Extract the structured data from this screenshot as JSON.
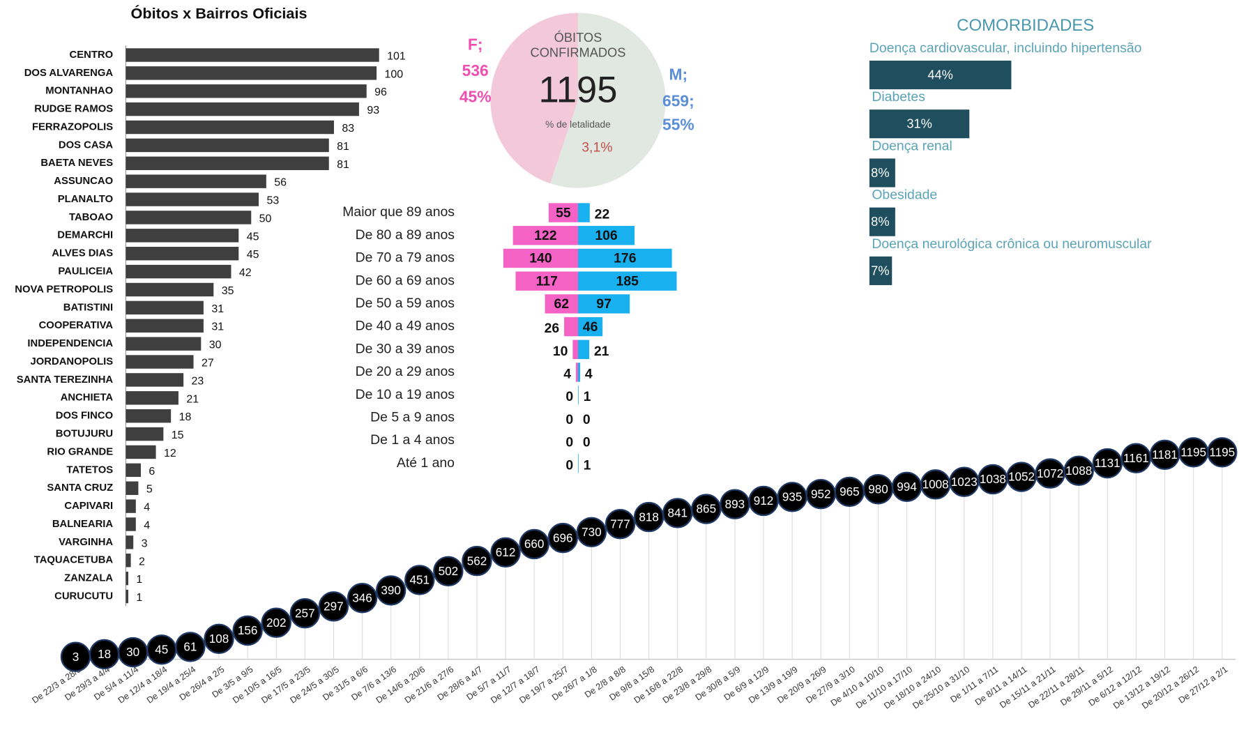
{
  "chart_data": [
    {
      "type": "bar",
      "orientation": "horizontal",
      "title": "Óbitos x Bairros Oficiais",
      "categories": [
        "CENTRO",
        "DOS ALVARENGA",
        "MONTANHAO",
        "RUDGE RAMOS",
        "FERRAZOPOLIS",
        "DOS CASA",
        "BAETA NEVES",
        "ASSUNCAO",
        "PLANALTO",
        "TABOAO",
        "DEMARCHI",
        "ALVES DIAS",
        "PAULICEIA",
        "NOVA PETROPOLIS",
        "BATISTINI",
        "COOPERATIVA",
        "INDEPENDENCIA",
        "JORDANOPOLIS",
        "SANTA TEREZINHA",
        "ANCHIETA",
        "DOS FINCO",
        "BOTUJURU",
        "RIO GRANDE",
        "TATETOS",
        "SANTA CRUZ",
        "CAPIVARI",
        "BALNEARIA",
        "VARGINHA",
        "TAQUACETUBA",
        "ZANZALA",
        "CURUCUTU"
      ],
      "values": [
        101,
        100,
        96,
        93,
        83,
        81,
        81,
        56,
        53,
        50,
        45,
        45,
        42,
        35,
        31,
        31,
        30,
        27,
        23,
        21,
        18,
        15,
        12,
        6,
        5,
        4,
        4,
        3,
        2,
        1,
        1
      ],
      "color": "#3f3f3f",
      "xlim": [
        0,
        110
      ]
    },
    {
      "type": "pie",
      "title_lines": [
        "ÓBITOS",
        "CONFIRMADOS"
      ],
      "total": 1195,
      "subtitle": "% de letalidade",
      "lethality": 3.1,
      "lethality_label": "3,1%",
      "series": [
        {
          "name": "F;",
          "value": 536,
          "percent": 45,
          "percent_label": "45%",
          "color": "#f3c9d9",
          "label_color": "#ef4fb1"
        },
        {
          "name": "M;",
          "value": 659,
          "value_label": "659;",
          "percent": 55,
          "percent_label": "55%",
          "color": "#e1e7e1",
          "label_color": "#5b8fd8"
        }
      ]
    },
    {
      "type": "pyramid",
      "categories": [
        "Maior que 89 anos",
        "De 80 a 89 anos",
        "De 70 a 79 anos",
        "De 60 a 69 anos",
        "De 50 a 59 anos",
        "De 40 a 49 anos",
        "De 30 a 39 anos",
        "De 20 a 29 anos",
        "De 10 a 19 anos",
        "De 5 a 9 anos",
        "De 1 a 4 anos",
        "Até 1 ano"
      ],
      "series": [
        {
          "color": "#f562c6",
          "values": [
            55,
            122,
            140,
            117,
            62,
            26,
            10,
            4,
            0,
            0,
            0,
            0
          ]
        },
        {
          "color": "#19b0f0",
          "values": [
            22,
            106,
            176,
            185,
            97,
            46,
            21,
            4,
            1,
            0,
            0,
            1
          ]
        }
      ],
      "xlim": [
        0,
        190
      ]
    },
    {
      "type": "bar",
      "orientation": "horizontal",
      "title": "COMORBIDADES",
      "categories": [
        "Doença cardiovascular, incluindo hipertensão",
        "Diabetes",
        "Doença renal",
        "Obesidade",
        "Doença neurológica crônica ou neuromuscular"
      ],
      "values": [
        44,
        31,
        8,
        8,
        7
      ],
      "value_labels": [
        "44%",
        "31%",
        "8%",
        "8%",
        "7%"
      ],
      "color": "#1f4f5e",
      "xlim": [
        0,
        100
      ]
    },
    {
      "type": "line",
      "categories": [
        "De 22/3 a 28/3",
        "De 29/3 a 4/4",
        "De 5/4 a 11/4",
        "De 12/4 a 18/4",
        "De 19/4 a 25/4",
        "De 26/4 a 2/5",
        "De 3/5 a 9/5",
        "De 10/5 a 16/5",
        "De 17/5 a 23/5",
        "De 24/5 a 30/5",
        "De 31/5 a 6/6",
        "De 7/6 a 13/6",
        "De 14/6 a 20/6",
        "De 21/6 a 27/6",
        "De 28/6 a 4/7",
        "De 5/7 a 11/7",
        "De 12/7 a 18/7",
        "De 19/7 a 25/7",
        "De 26/7 a 1/8",
        "De 2/8 a 8/8",
        "De 9/8 a 15/8",
        "De 16/8 a 22/8",
        "De 23/8 a 29/8",
        "De 30/8 a 5/9",
        "De 6/9 a 12/9",
        "De 13/9 a 19/9",
        "De 20/9 a 26/9",
        "De 27/9 a 3/10",
        "De 4/10 a 10/10",
        "De 11/10 a 17/10",
        "De 18/10 a 24/10",
        "De 25/10 a 31/10",
        "De 1/11 a 7/11",
        "De 8/11 a 14/11",
        "De 15/11 a 21/11",
        "De 22/11 a 28/11",
        "De 29/11 a 5/12",
        "De 6/12 a 12/12",
        "De 13/12 a 19/12",
        "De 20/12 a 26/12",
        "De 27/12 a 2/1"
      ],
      "values": [
        3,
        18,
        30,
        45,
        61,
        108,
        156,
        202,
        257,
        297,
        346,
        390,
        451,
        502,
        562,
        612,
        660,
        696,
        730,
        777,
        818,
        841,
        865,
        893,
        912,
        935,
        952,
        965,
        980,
        994,
        1008,
        1023,
        1038,
        1052,
        1072,
        1088,
        1131,
        1161,
        1181,
        1195,
        1195
      ],
      "ylim": [
        0,
        1200
      ],
      "color": "#000000"
    }
  ]
}
